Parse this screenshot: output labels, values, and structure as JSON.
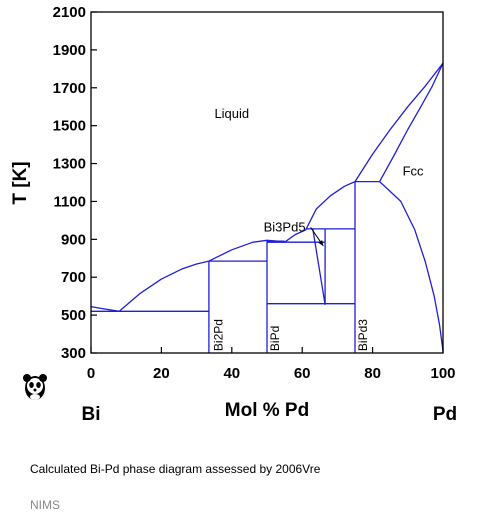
{
  "chart_data": {
    "type": "phase-diagram",
    "xlabel": "Mol % Pd",
    "ylabel": "T [K]",
    "xlim": [
      0,
      100
    ],
    "ylim": [
      300,
      2100
    ],
    "x_ticks": [
      "0",
      "20",
      "40",
      "60",
      "80",
      "100"
    ],
    "y_ticks": [
      "300",
      "500",
      "700",
      "900",
      "1100",
      "1300",
      "1500",
      "1700",
      "1900",
      "2100"
    ],
    "x_tick_values": [
      0,
      20,
      40,
      60,
      80,
      100
    ],
    "y_tick_values": [
      300,
      500,
      700,
      900,
      1100,
      1300,
      1500,
      1700,
      1900,
      2100
    ],
    "left_component": "Bi",
    "right_component": "Pd",
    "line_color": "#1f1fd6",
    "region_labels": [
      {
        "text": "Liquid",
        "x": 40,
        "y": 1540
      },
      {
        "text": "Fcc",
        "x": 91.5,
        "y": 1237
      }
    ],
    "phase_labels": [
      {
        "text": "Bi2Pd",
        "x": 34,
        "y": 310
      },
      {
        "text": "BiPd",
        "x": 50,
        "y": 310
      },
      {
        "text": "BiPd3",
        "x": 75,
        "y": 310
      }
    ],
    "annotations": [
      {
        "text": "Bi3Pd5",
        "x": 55,
        "y": 963,
        "arrow_to": [
          66,
          865
        ]
      }
    ],
    "lines": [
      {
        "name": "liquidus-bi-side",
        "points": [
          [
            0,
            545
          ],
          [
            3,
            535
          ],
          [
            8,
            520
          ]
        ]
      },
      {
        "name": "liquidus-bi2pd",
        "points": [
          [
            8,
            520
          ],
          [
            14,
            615
          ],
          [
            20,
            690
          ],
          [
            26,
            745
          ],
          [
            30,
            770
          ],
          [
            33.5,
            785
          ]
        ]
      },
      {
        "name": "liquidus-bipd",
        "points": [
          [
            33.5,
            785
          ],
          [
            40,
            845
          ],
          [
            46,
            885
          ],
          [
            50,
            895
          ],
          [
            53,
            890
          ],
          [
            55,
            885
          ]
        ]
      },
      {
        "name": "liquidus-bi3pd5",
        "points": [
          [
            55,
            885
          ],
          [
            58,
            925
          ],
          [
            61,
            950
          ]
        ]
      },
      {
        "name": "liquidus-bipd3",
        "points": [
          [
            61,
            950
          ],
          [
            64,
            1060
          ],
          [
            68,
            1130
          ],
          [
            72,
            1180
          ],
          [
            75,
            1205
          ]
        ]
      },
      {
        "name": "liquidus-fcc",
        "points": [
          [
            75,
            1205
          ],
          [
            80,
            1350
          ],
          [
            85,
            1480
          ],
          [
            90,
            1600
          ],
          [
            95,
            1710
          ],
          [
            100,
            1830
          ]
        ]
      },
      {
        "name": "solidus-fcc",
        "points": [
          [
            82,
            1205
          ],
          [
            86,
            1340
          ],
          [
            90,
            1480
          ],
          [
            94,
            1610
          ],
          [
            97,
            1710
          ],
          [
            100,
            1830
          ]
        ]
      },
      {
        "name": "solvus-fcc",
        "points": [
          [
            82,
            1205
          ],
          [
            88,
            1100
          ],
          [
            92,
            950
          ],
          [
            95,
            780
          ],
          [
            97.5,
            600
          ],
          [
            99,
            450
          ],
          [
            100,
            310
          ]
        ]
      },
      {
        "name": "peritectic-1205",
        "points": [
          [
            75,
            1205
          ],
          [
            82,
            1205
          ]
        ]
      },
      {
        "name": "eutectic-520",
        "points": [
          [
            0,
            520
          ],
          [
            33.5,
            520
          ]
        ]
      },
      {
        "name": "peritectic-785",
        "points": [
          [
            33.5,
            785
          ],
          [
            50,
            785
          ]
        ]
      },
      {
        "name": "line-890",
        "points": [
          [
            50,
            890
          ],
          [
            55,
            890
          ]
        ]
      },
      {
        "name": "bi3pd5-invariant",
        "points": [
          [
            50,
            885
          ],
          [
            66.5,
            885
          ]
        ]
      },
      {
        "name": "bipd3-upper-invariant",
        "points": [
          [
            61,
            955
          ],
          [
            75,
            955
          ]
        ]
      },
      {
        "name": "invariant-560",
        "points": [
          [
            50,
            560
          ],
          [
            75,
            560
          ]
        ]
      },
      {
        "name": "bi2pd-compound",
        "points": [
          [
            33.5,
            300
          ],
          [
            33.5,
            785
          ]
        ]
      },
      {
        "name": "bipd-compound",
        "points": [
          [
            50,
            300
          ],
          [
            50,
            890
          ]
        ]
      },
      {
        "name": "bipd3-compound",
        "points": [
          [
            75,
            300
          ],
          [
            75,
            1205
          ]
        ]
      },
      {
        "name": "bi3pd5-phase-left",
        "points": [
          [
            63,
            955
          ],
          [
            66.5,
            555
          ]
        ]
      },
      {
        "name": "bi3pd5-phase-right",
        "points": [
          [
            66.5,
            955
          ],
          [
            66.5,
            555
          ]
        ]
      }
    ]
  },
  "caption": "Calculated Bi-Pd phase diagram assessed by 2006Vre",
  "source": "NIMS",
  "logo": {
    "icon": "panda-icon"
  }
}
